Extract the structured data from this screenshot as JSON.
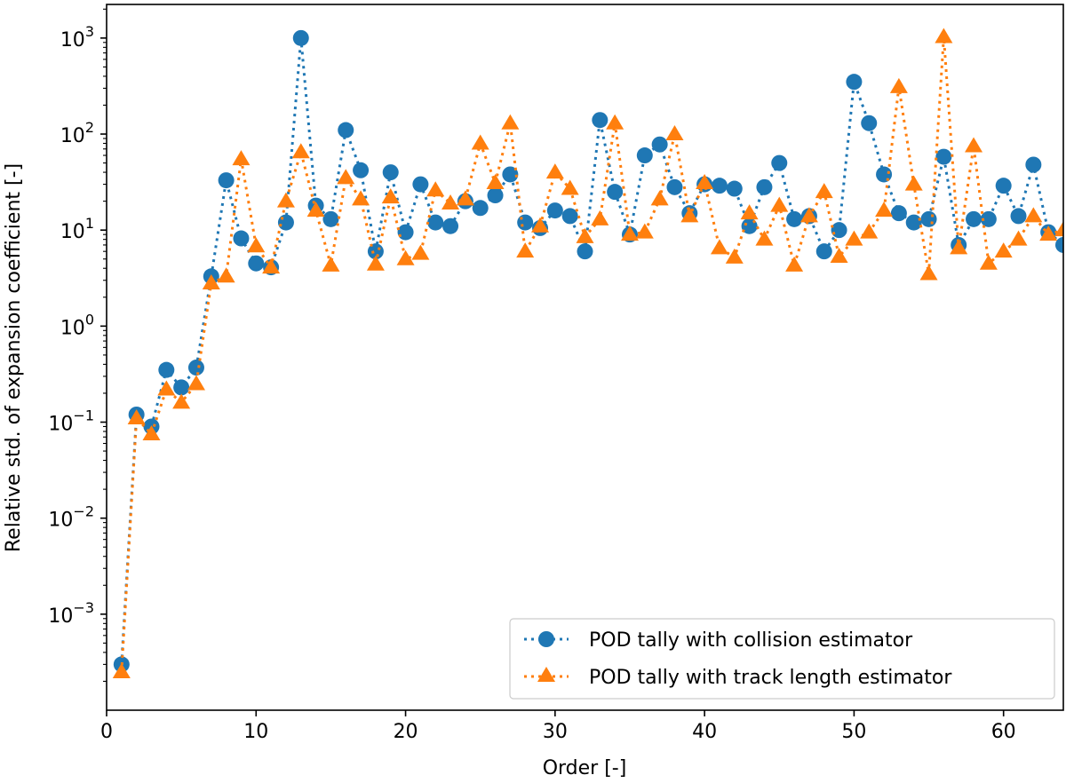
{
  "chart_data": {
    "type": "line",
    "xlabel": "Order [-]",
    "ylabel": "Relative std. of expansion coefficient [-]",
    "xlim": [
      0,
      64
    ],
    "ylim_log10": [
      -4,
      3.35
    ],
    "yscale": "log",
    "x_ticks": [
      0,
      10,
      20,
      30,
      40,
      50,
      60
    ],
    "y_ticks": [
      {
        "exp": -3,
        "base": "10",
        "sup": "−3"
      },
      {
        "exp": -2,
        "base": "10",
        "sup": "−2"
      },
      {
        "exp": -1,
        "base": "10",
        "sup": "−1"
      },
      {
        "exp": 0,
        "base": "10",
        "sup": "0"
      },
      {
        "exp": 1,
        "base": "10",
        "sup": "1"
      },
      {
        "exp": 2,
        "base": "10",
        "sup": "2"
      },
      {
        "exp": 3,
        "base": "10",
        "sup": "3"
      }
    ],
    "legend_position": "lower-right",
    "series": [
      {
        "name": "POD tally with collision estimator",
        "color": "#1f77b4",
        "marker": "circle",
        "linestyle": "dotted",
        "x": [
          1,
          2,
          3,
          4,
          5,
          6,
          7,
          8,
          9,
          10,
          11,
          12,
          13,
          14,
          15,
          16,
          17,
          18,
          19,
          20,
          21,
          22,
          23,
          24,
          25,
          26,
          27,
          28,
          29,
          30,
          31,
          32,
          33,
          34,
          35,
          36,
          37,
          38,
          39,
          40,
          41,
          42,
          43,
          44,
          45,
          46,
          47,
          48,
          49,
          50,
          51,
          52,
          53,
          54,
          55,
          56,
          57,
          58,
          59,
          60,
          61,
          62,
          63,
          64
        ],
        "values": [
          0.0003,
          0.12,
          0.09,
          0.35,
          0.23,
          0.37,
          3.3,
          33,
          8.2,
          4.5,
          4.1,
          12,
          1000,
          18,
          13,
          110,
          42,
          6,
          40,
          9.5,
          30,
          12,
          11,
          20,
          17,
          23,
          38,
          12,
          10.5,
          16,
          14,
          6,
          140,
          25,
          9,
          60,
          78,
          28,
          15,
          30,
          29,
          27,
          11,
          28,
          50,
          13,
          14,
          6,
          10,
          350,
          130,
          38,
          15,
          12,
          13,
          58,
          7,
          13,
          13,
          29,
          14,
          48,
          9.5,
          7
        ]
      },
      {
        "name": "POD tally with track length estimator",
        "color": "#ff7f0e",
        "marker": "triangle",
        "linestyle": "dotted",
        "x": [
          1,
          2,
          3,
          4,
          5,
          6,
          7,
          8,
          9,
          10,
          11,
          12,
          13,
          14,
          15,
          16,
          17,
          18,
          19,
          20,
          21,
          22,
          23,
          24,
          25,
          26,
          27,
          28,
          29,
          30,
          31,
          32,
          33,
          34,
          35,
          36,
          37,
          38,
          39,
          40,
          41,
          42,
          43,
          44,
          45,
          46,
          47,
          48,
          49,
          50,
          51,
          52,
          53,
          54,
          55,
          56,
          57,
          58,
          59,
          60,
          61,
          62,
          63,
          64
        ],
        "values": [
          0.00025,
          0.11,
          0.075,
          0.22,
          0.16,
          0.25,
          2.8,
          3.3,
          55,
          6.8,
          4.1,
          20,
          65,
          16,
          4.3,
          35,
          21,
          4.4,
          22,
          5.0,
          5.7,
          26,
          19,
          21,
          80,
          31,
          130,
          6.0,
          11,
          40,
          27,
          8.5,
          13,
          130,
          9,
          9.5,
          21,
          100,
          14,
          31,
          6.5,
          5.2,
          15,
          8.0,
          18,
          4.3,
          14,
          25,
          5.3,
          8.0,
          9.5,
          16,
          310,
          30,
          3.5,
          1030,
          6.5,
          75,
          4.5,
          6.0,
          8.0,
          14,
          9,
          10
        ]
      }
    ]
  }
}
